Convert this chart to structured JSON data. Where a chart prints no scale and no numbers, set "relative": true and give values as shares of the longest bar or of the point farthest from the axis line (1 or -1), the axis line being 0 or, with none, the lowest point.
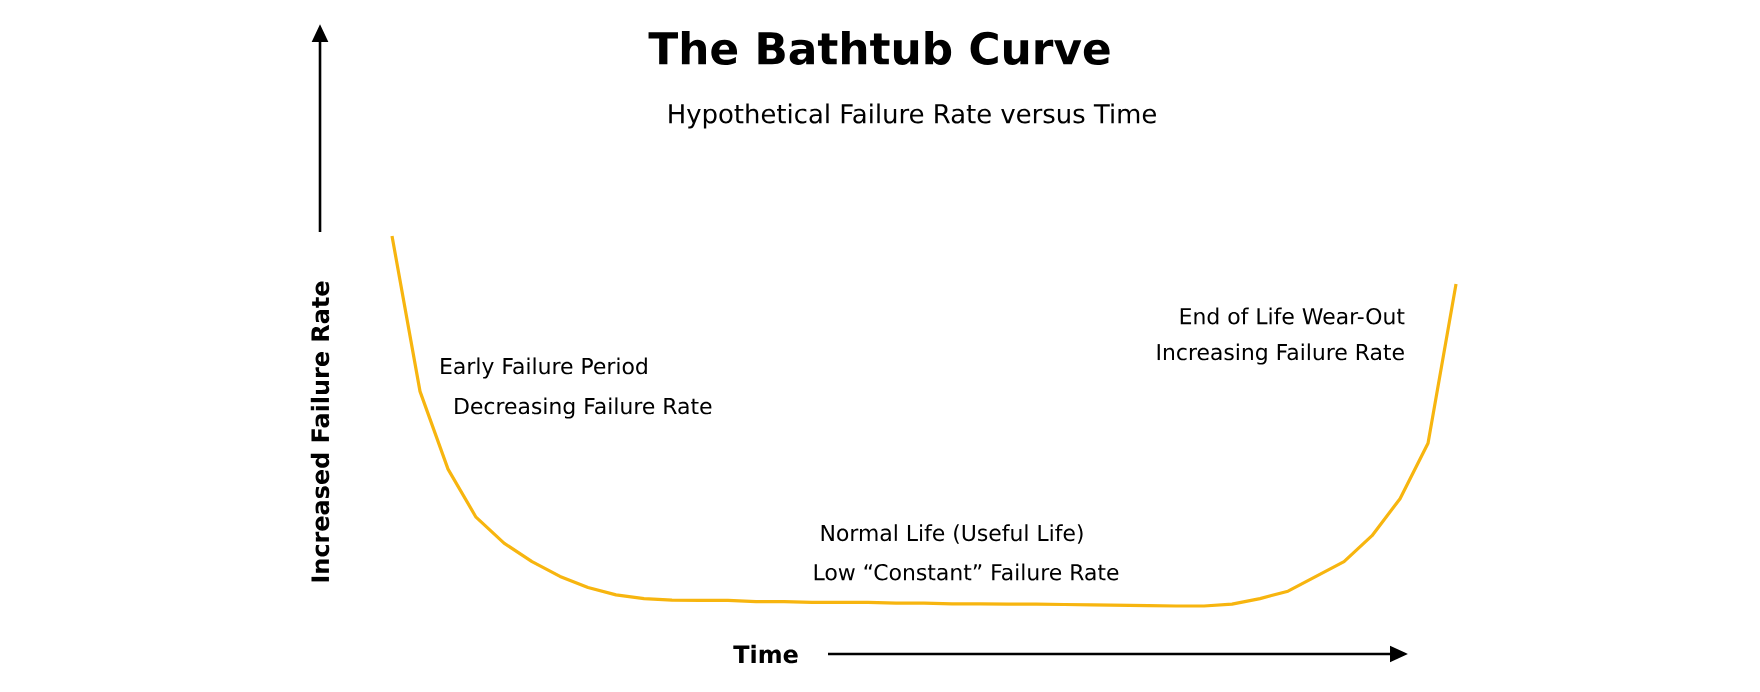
{
  "chart_data": {
    "type": "line",
    "title": "The Bathtub Curve",
    "subtitle": "Hypothetical Failure Rate versus Time",
    "xlabel": "Time",
    "ylabel": "Increased Failure Rate",
    "relative": true,
    "categories": [
      null,
      null,
      null,
      null,
      null,
      null,
      null,
      null,
      null,
      null,
      null,
      null,
      null,
      null,
      null,
      null,
      null,
      null,
      null,
      null,
      null,
      null,
      null,
      null,
      null,
      null,
      null,
      null,
      null,
      null,
      null,
      null,
      null,
      null,
      null,
      null,
      null,
      null,
      null
    ],
    "series": [
      {
        "color": "#f7b50f",
        "values": [
          1.0,
          0.58,
          0.37,
          0.24,
          0.17,
          0.12,
          0.08,
          0.05,
          0.03,
          0.02,
          0.016,
          0.015,
          0.015,
          0.012,
          0.012,
          0.01,
          0.01,
          0.01,
          0.008,
          0.008,
          0.006,
          0.006,
          0.005,
          0.005,
          0.004,
          0.003,
          0.002,
          0.001,
          0,
          0,
          0.005,
          0.02,
          0.04,
          0.08,
          0.12,
          0.19,
          0.29,
          0.44,
          0.87
        ]
      }
    ],
    "annotations": [
      "Early Failure Period",
      "Decreasing Failure Rate",
      "End of Life Wear-Out",
      "Increasing Failure Rate",
      "Normal Life (Useful Life)",
      "Low “Constant” Failure Rate"
    ]
  }
}
